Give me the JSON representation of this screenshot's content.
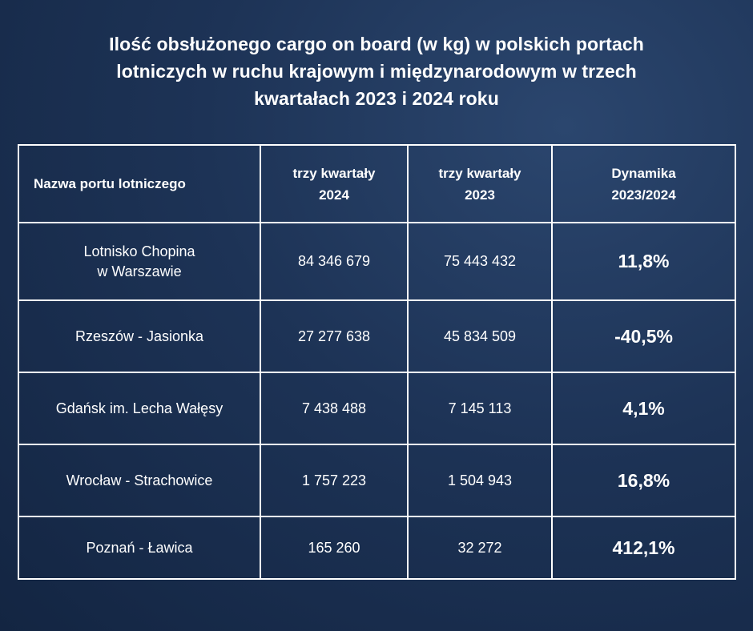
{
  "title_lines": [
    "Ilość obsłużonego cargo on board (w kg) w polskich portach",
    "lotniczych w ruchu krajowym i międzynarodowym w trzech",
    "kwartałach 2023 i 2024 roku"
  ],
  "chart_data": {
    "type": "table",
    "title": "Ilość obsłużonego cargo on board (w kg) w polskich portach lotniczych w ruchu krajowym i międzynarodowym w trzech kwartałach 2023 i 2024 roku",
    "headers": {
      "name": "Nazwa portu lotniczego",
      "q2024": [
        "trzy kwartały",
        "2024"
      ],
      "q2023": [
        "trzy kwartały",
        "2023"
      ],
      "dyn": [
        "Dynamika",
        "2023/2024"
      ]
    },
    "rows": [
      {
        "name_lines": [
          "Lotnisko Chopina",
          "w Warszawie"
        ],
        "v2024": "84 346 679",
        "v2023": "75 443 432",
        "dyn": "11,8%"
      },
      {
        "name_lines": [
          "Rzeszów - Jasionka"
        ],
        "v2024": "27 277 638",
        "v2023": "45 834 509",
        "dyn": "-40,5%"
      },
      {
        "name_lines": [
          "Gdańsk im. Lecha Wałęsy"
        ],
        "v2024": "7 438 488",
        "v2023": "7 145 113",
        "dyn": "4,1%"
      },
      {
        "name_lines": [
          "Wrocław - Strachowice"
        ],
        "v2024": "1 757 223",
        "v2023": "1 504 943",
        "dyn": "16,8%"
      },
      {
        "name_lines": [
          "Poznań - Ławica"
        ],
        "v2024": "165 260",
        "v2023": "32 272",
        "dyn": "412,1%"
      }
    ]
  }
}
